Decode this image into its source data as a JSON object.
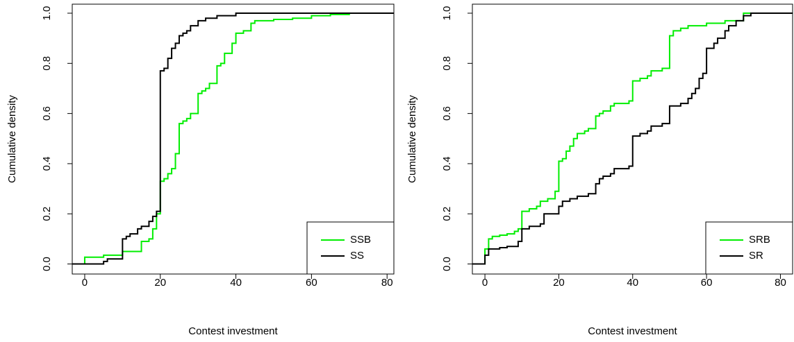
{
  "chart_data": [
    {
      "type": "step",
      "xlabel": "Contest investment",
      "ylabel": "Cumulative density",
      "xlim": [
        -3.3,
        81.8
      ],
      "ylim": [
        -0.04,
        1.036
      ],
      "xticks": [
        0,
        20,
        40,
        60,
        80
      ],
      "yticks": [
        {
          "value": 0,
          "label": "0.0"
        },
        {
          "value": 0.2,
          "label": "0.2"
        },
        {
          "value": 0.4,
          "label": "0.4"
        },
        {
          "value": 0.6,
          "label": "0.6"
        },
        {
          "value": 0.8,
          "label": "0.8"
        },
        {
          "value": 1,
          "label": "1.0"
        }
      ],
      "legend": "bottom-right",
      "series": [
        {
          "name": "SSB",
          "color": "#00ee00",
          "x": [
            0,
            5,
            10,
            15,
            17,
            18,
            19,
            20,
            21,
            22,
            23,
            24,
            25,
            26,
            27,
            28,
            30,
            31,
            32,
            33,
            35,
            36,
            37,
            39,
            40,
            42,
            44,
            45,
            50,
            55,
            60,
            65,
            70
          ],
          "values": [
            0.027,
            0.035,
            0.05,
            0.09,
            0.1,
            0.14,
            0.2,
            0.33,
            0.34,
            0.36,
            0.38,
            0.44,
            0.56,
            0.57,
            0.58,
            0.6,
            0.68,
            0.69,
            0.7,
            0.72,
            0.79,
            0.8,
            0.84,
            0.88,
            0.92,
            0.93,
            0.96,
            0.97,
            0.975,
            0.98,
            0.99,
            0.995,
            1.0
          ]
        },
        {
          "name": "SS",
          "color": "#000000",
          "x": [
            5,
            6,
            10,
            11,
            12,
            14,
            15,
            17,
            18,
            19,
            20,
            21,
            22,
            23,
            24,
            25,
            26,
            27,
            28,
            30,
            32,
            35,
            40
          ],
          "values": [
            0.01,
            0.02,
            0.1,
            0.11,
            0.12,
            0.14,
            0.15,
            0.17,
            0.19,
            0.21,
            0.77,
            0.78,
            0.82,
            0.86,
            0.88,
            0.91,
            0.92,
            0.93,
            0.95,
            0.97,
            0.98,
            0.99,
            1.0
          ]
        }
      ]
    },
    {
      "type": "step",
      "xlabel": "Contest investment",
      "ylabel": "Cumulative density",
      "xlim": [
        -3.4,
        83.3
      ],
      "ylim": [
        -0.04,
        1.036
      ],
      "xticks": [
        0,
        20,
        40,
        60,
        80
      ],
      "yticks": [
        {
          "value": 0,
          "label": "0.0"
        },
        {
          "value": 0.2,
          "label": "0.2"
        },
        {
          "value": 0.4,
          "label": "0.4"
        },
        {
          "value": 0.6,
          "label": "0.6"
        },
        {
          "value": 0.8,
          "label": "0.8"
        },
        {
          "value": 1,
          "label": "1.0"
        }
      ],
      "legend": "bottom-right",
      "series": [
        {
          "name": "SRB",
          "color": "#00ee00",
          "x": [
            0,
            1,
            2,
            4,
            6,
            8,
            9,
            10,
            12,
            14,
            15,
            17,
            19,
            20,
            21,
            22,
            23,
            24,
            25,
            27,
            28,
            30,
            31,
            32,
            34,
            35,
            39,
            40,
            42,
            44,
            45,
            48,
            50,
            51,
            53,
            55,
            60,
            65,
            70
          ],
          "values": [
            0.06,
            0.1,
            0.11,
            0.115,
            0.12,
            0.13,
            0.14,
            0.21,
            0.22,
            0.23,
            0.25,
            0.26,
            0.29,
            0.41,
            0.42,
            0.45,
            0.47,
            0.5,
            0.52,
            0.53,
            0.54,
            0.59,
            0.6,
            0.61,
            0.63,
            0.64,
            0.65,
            0.73,
            0.74,
            0.75,
            0.77,
            0.78,
            0.91,
            0.93,
            0.94,
            0.95,
            0.96,
            0.97,
            1.0
          ]
        },
        {
          "name": "SR",
          "color": "#000000",
          "x": [
            0,
            1,
            4,
            6,
            9,
            10,
            12,
            15,
            16,
            20,
            21,
            23,
            25,
            28,
            30,
            31,
            32,
            34,
            35,
            39,
            40,
            42,
            44,
            45,
            48,
            50,
            53,
            55,
            56,
            57,
            58,
            59,
            60,
            62,
            63,
            65,
            66,
            68,
            70,
            72
          ],
          "values": [
            0.035,
            0.06,
            0.065,
            0.07,
            0.09,
            0.14,
            0.15,
            0.16,
            0.2,
            0.23,
            0.25,
            0.26,
            0.27,
            0.28,
            0.32,
            0.34,
            0.35,
            0.36,
            0.38,
            0.39,
            0.51,
            0.52,
            0.53,
            0.55,
            0.56,
            0.63,
            0.64,
            0.66,
            0.68,
            0.7,
            0.74,
            0.76,
            0.86,
            0.88,
            0.9,
            0.93,
            0.95,
            0.97,
            0.99,
            1.0
          ]
        }
      ]
    }
  ]
}
